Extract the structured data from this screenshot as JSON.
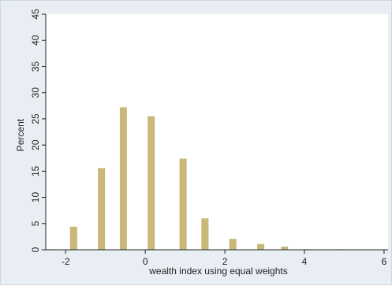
{
  "chart_data": {
    "type": "bar",
    "title": "",
    "xlabel": "wealth index using equal weights",
    "ylabel": "Percent",
    "xlim": [
      -2.5,
      6.1
    ],
    "ylim": [
      0,
      45
    ],
    "x_ticks": [
      -2,
      0,
      2,
      4,
      6
    ],
    "y_ticks": [
      0,
      5,
      10,
      15,
      20,
      25,
      30,
      35,
      40,
      45
    ],
    "grid": false,
    "bar_color": "#c8b87a",
    "bar_width": 0.18,
    "x": [
      -2.4,
      -1.8,
      -1.1,
      -0.55,
      0.15,
      0.95,
      1.5,
      2.2,
      2.9,
      3.5,
      4.1,
      4.85
    ],
    "values": [
      0.1,
      4.4,
      15.6,
      27.2,
      25.5,
      17.4,
      6.0,
      2.1,
      1.1,
      0.6,
      0.1,
      0.1
    ]
  }
}
